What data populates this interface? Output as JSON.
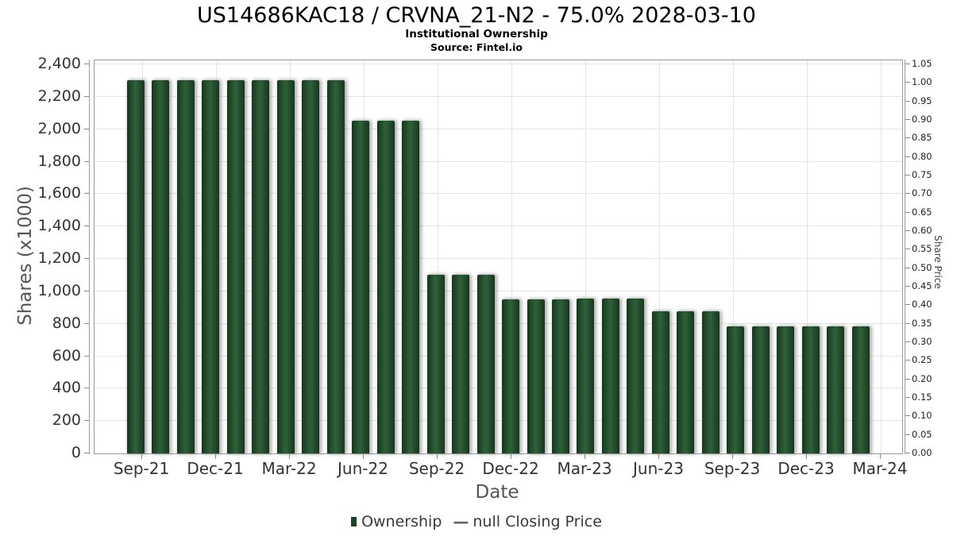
{
  "header": {
    "title": "US14686KAC18 / CRVNA_21-N2 - 75.0% 2028-03-10",
    "subtitle": "Institutional Ownership",
    "source": "Source: Fintel.io"
  },
  "chart_data": {
    "type": "bar",
    "title": "US14686KAC18 / CRVNA_21-N2 - 75.0% 2028-03-10",
    "subtitle": "Institutional Ownership",
    "source": "Source: Fintel.io",
    "xlabel": "Date",
    "ylabel": "Shares (x1000)",
    "ylabel_right": "Share Price",
    "ylim": [
      0,
      2400
    ],
    "ytick_interval": 200,
    "ylim_right": [
      0.0,
      1.05
    ],
    "ytick_interval_right": 0.05,
    "grid": true,
    "legend_position": "bottom",
    "x_tick_labels": [
      "Sep-21",
      "Dec-21",
      "Mar-22",
      "Jun-22",
      "Sep-22",
      "Dec-22",
      "Mar-23",
      "Jun-23",
      "Sep-23",
      "Dec-23",
      "Mar-24"
    ],
    "categories": [
      "Sep-21",
      "Oct-21",
      "Nov-21",
      "Dec-21",
      "Jan-22",
      "Feb-22",
      "Mar-22",
      "Apr-22",
      "May-22",
      "Jun-22",
      "Jul-22",
      "Aug-22",
      "Sep-22",
      "Oct-22",
      "Nov-22",
      "Dec-22",
      "Jan-23",
      "Feb-23",
      "Mar-23",
      "Apr-23",
      "May-23",
      "Jun-23",
      "Jul-23",
      "Aug-23",
      "Sep-23",
      "Oct-23",
      "Nov-23",
      "Dec-23",
      "Jan-24",
      "Feb-24"
    ],
    "series": [
      {
        "name": "Ownership",
        "type": "bar",
        "values": [
          2300,
          2300,
          2300,
          2300,
          2300,
          2300,
          2300,
          2300,
          2300,
          2050,
          2050,
          2050,
          1100,
          1100,
          1100,
          950,
          950,
          950,
          955,
          955,
          955,
          875,
          875,
          875,
          785,
          785,
          785,
          785,
          785,
          785
        ]
      },
      {
        "name": "null Closing Price",
        "type": "line",
        "values": []
      }
    ]
  },
  "colors": {
    "bar_edge": "#16371e",
    "bar_mid": "#2f6139",
    "legend_swatch": "#1d4226",
    "grid": "#e4e4e4",
    "axis": "#9b9b9b"
  }
}
